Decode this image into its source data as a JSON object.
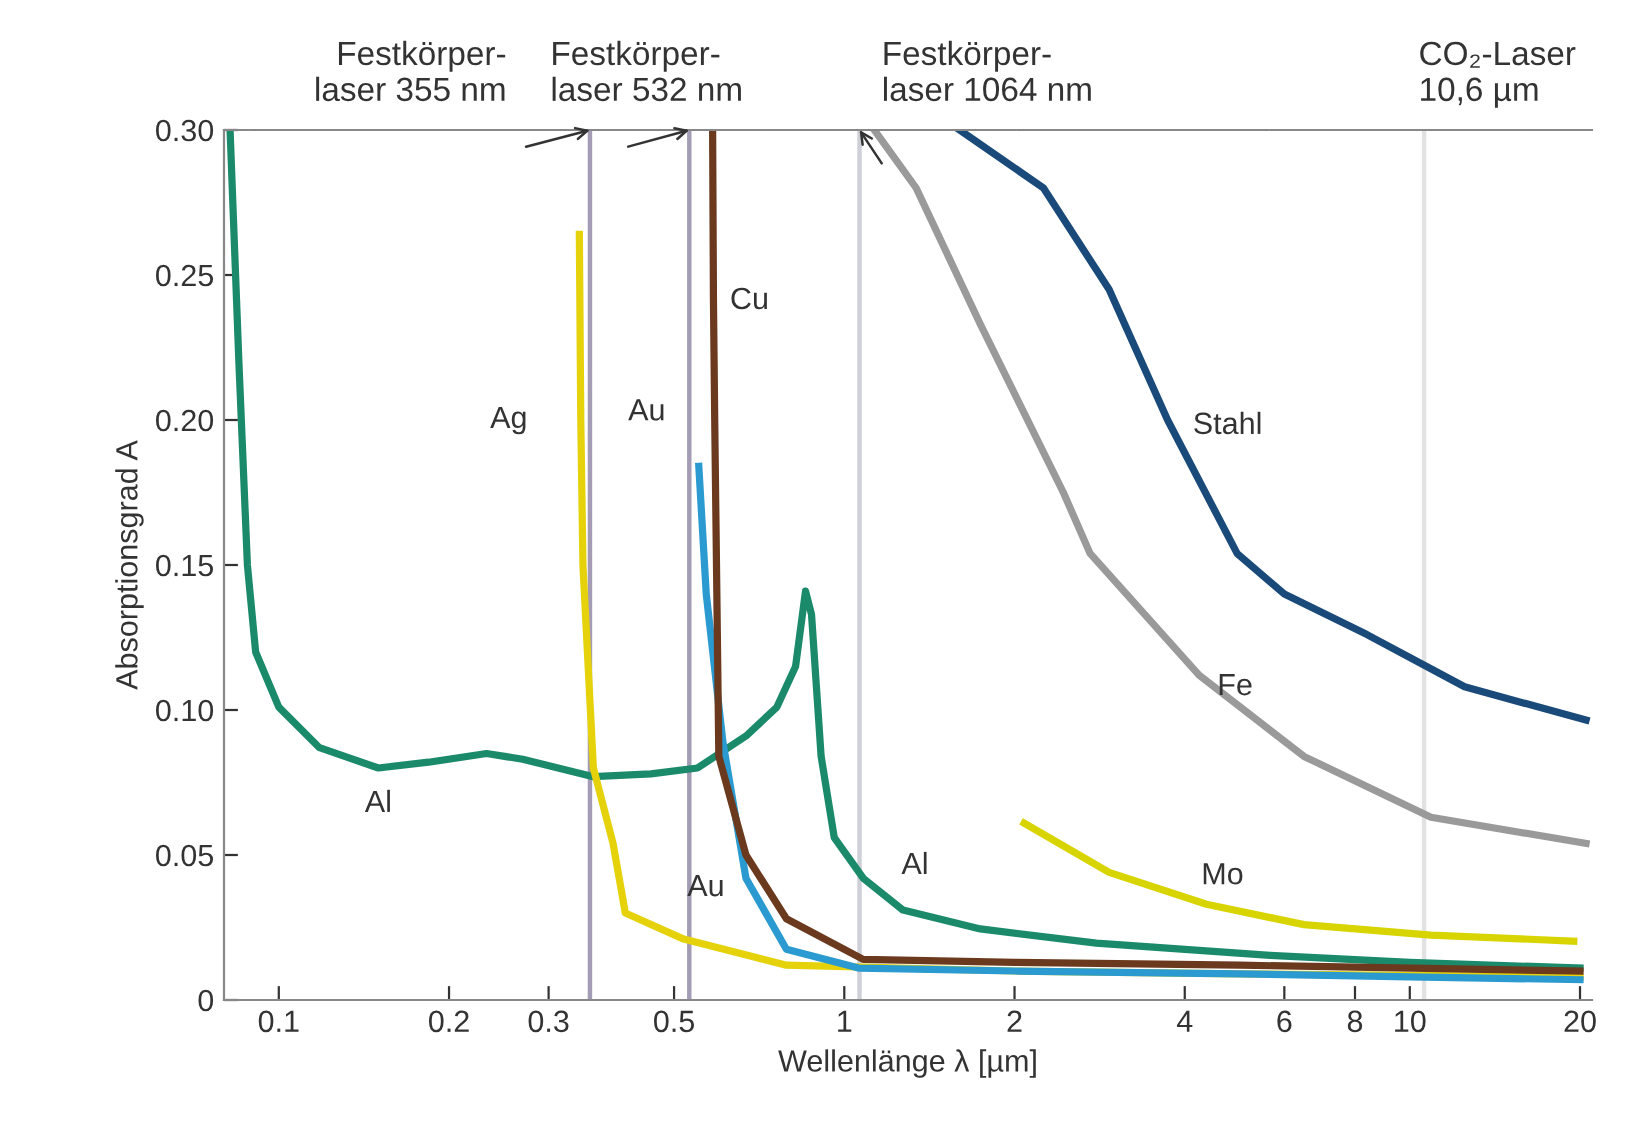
{
  "chart_data": {
    "type": "line",
    "xlabel": "Wellenlänge λ [µm]",
    "ylabel": "Absorptionsgrad A",
    "log": "x",
    "xlim": [
      0.08,
      21
    ],
    "xticks": [
      0.1,
      0.2,
      0.3,
      0.5,
      1,
      2,
      4,
      6,
      8,
      10,
      20
    ],
    "ylim": [
      0,
      0.3
    ],
    "yticks": [
      0,
      0.05,
      {
        "value": 0.1,
        "label": "0.10"
      },
      0.15,
      {
        "value": 0.2,
        "label": "0.20"
      },
      0.25,
      {
        "value": 0.3,
        "label": "0.30"
      }
    ],
    "grid": false,
    "legend": false,
    "marker": "none",
    "line_style": "solid",
    "series": [
      {
        "color": "#1a8a6a",
        "x": [
          0.082,
          0.085,
          0.088,
          0.091,
          0.1,
          0.118,
          0.15,
          0.184,
          0.233,
          0.27,
          0.36,
          0.455,
          0.55,
          0.67,
          0.76,
          0.82,
          0.854,
          0.875,
          0.91,
          0.96,
          1.08,
          1.27,
          1.74,
          2.79,
          5.66,
          10,
          20
        ],
        "values": [
          0.3,
          0.22,
          0.15,
          0.12,
          0.101,
          0.087,
          0.08,
          0.082,
          0.085,
          0.083,
          0.077,
          0.078,
          0.08,
          0.091,
          0.101,
          0.115,
          0.141,
          0.133,
          0.084,
          0.056,
          0.042,
          0.031,
          0.0245,
          0.0196,
          0.0154,
          0.013,
          0.011
        ]
      },
      {
        "color": "#e6d20a",
        "x": [
          0.34,
          0.342,
          0.345,
          0.36,
          0.39,
          0.41,
          0.52,
          0.79,
          2,
          5,
          10,
          20
        ],
        "values": [
          0.264,
          0.2,
          0.15,
          0.08,
          0.054,
          0.03,
          0.021,
          0.012,
          0.01,
          0.009,
          0.0085,
          0.008
        ]
      },
      {
        "color": "#2a9ad0",
        "x": [
          0.553,
          0.57,
          0.61,
          0.67,
          0.79,
          1.06,
          2,
          5,
          10,
          20
        ],
        "values": [
          0.184,
          0.14,
          0.089,
          0.042,
          0.0175,
          0.011,
          0.01,
          0.009,
          0.008,
          0.007
        ]
      },
      {
        "color": "#6b3a1e",
        "x": [
          0.585,
          0.587,
          0.59,
          0.6,
          0.67,
          0.79,
          1.08,
          2,
          5,
          14.3,
          20
        ],
        "values": [
          0.3,
          0.241,
          0.2,
          0.084,
          0.05,
          0.028,
          0.014,
          0.013,
          0.012,
          0.0105,
          0.01
        ]
      },
      {
        "color": "#1a4a7a",
        "x": [
          1.6,
          2.25,
          2.94,
          3.73,
          4.95,
          6.0,
          8.4,
          12.5,
          20.5
        ],
        "values": [
          0.3,
          0.28,
          0.245,
          0.2,
          0.154,
          0.14,
          0.126,
          0.108,
          0.0965
        ]
      },
      {
        "color": "#9a9a9a",
        "x": [
          1.13,
          1.34,
          1.74,
          2.44,
          2.72,
          4.24,
          6.5,
          10.9,
          20.5
        ],
        "values": [
          0.3,
          0.28,
          0.233,
          0.175,
          0.154,
          0.112,
          0.084,
          0.063,
          0.054
        ]
      },
      {
        "color": "#d8d400",
        "x": [
          2.08,
          2.94,
          4.37,
          6.5,
          10.9,
          19.5
        ],
        "values": [
          0.061,
          0.044,
          0.033,
          0.026,
          0.0224,
          0.0203
        ]
      }
    ],
    "ref_lines": [
      {
        "axis": "x",
        "value": 0.355,
        "label": "Festkörper-\nlaser 355 nm",
        "color": "#a49cb4"
      },
      {
        "axis": "x",
        "value": 0.532,
        "label": "Festkörper-\nlaser 532 nm",
        "color": "#a49cb4"
      },
      {
        "axis": "x",
        "value": 1.064,
        "label": "Festkörper-\nlaser 1064 nm",
        "color": "#cfcfd8"
      },
      {
        "axis": "x",
        "value": 10.6,
        "label": "CO₂-Laser\n10,6 µm",
        "color": "#e2e2e2"
      }
    ],
    "annotations": [
      {
        "text": "Al",
        "x": 0.15,
        "y": 0.08
      },
      {
        "text": "Al",
        "x": 1.27,
        "y": 0.031
      },
      {
        "text": "Ag",
        "x": 0.342,
        "y": 0.2
      },
      {
        "text": "Au",
        "x": 0.553,
        "y": 0.184
      },
      {
        "text": "Au",
        "x": 0.67,
        "y": 0.042
      },
      {
        "text": "Cu",
        "x": 0.587,
        "y": 0.241
      },
      {
        "text": "Stahl",
        "x": 3.73,
        "y": 0.2
      },
      {
        "text": "Fe",
        "x": 4.24,
        "y": 0.112
      },
      {
        "text": "Mo",
        "x": 4.37,
        "y": 0.033
      }
    ]
  }
}
